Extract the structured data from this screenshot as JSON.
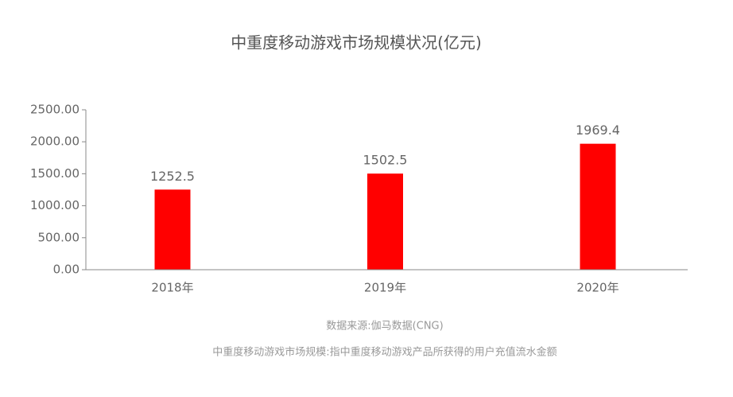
{
  "chart_data": {
    "type": "bar",
    "title": "中重度移动游戏市场规模状况(亿元)",
    "categories": [
      "2018年",
      "2019年",
      "2020年"
    ],
    "values": [
      1252.5,
      1502.5,
      1969.4
    ],
    "color": "#ff0000",
    "ylim": [
      0,
      2500
    ],
    "yticks": [
      {
        "value": 0,
        "label": "0.00"
      },
      {
        "value": 500,
        "label": "500.00"
      },
      {
        "value": 1000,
        "label": "1000.00"
      },
      {
        "value": 1500,
        "label": "1500.00"
      },
      {
        "value": 2000,
        "label": "2000.00"
      },
      {
        "value": 2500,
        "label": "2500.00"
      }
    ],
    "source": "数据来源:伽马数据(CNG)",
    "note": "中重度移动游戏市场规模:指中重度移动游戏产品所获得的用户充值流水金额"
  }
}
